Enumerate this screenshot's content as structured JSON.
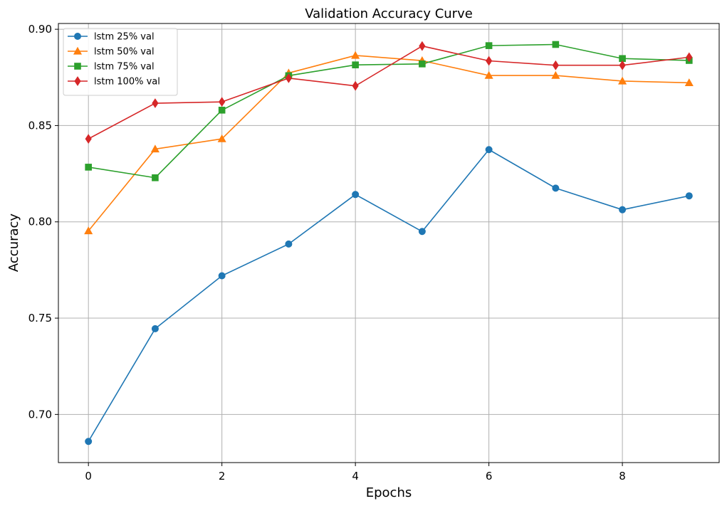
{
  "chart_data": {
    "type": "line",
    "title": "Validation Accuracy Curve",
    "xlabel": "Epochs",
    "ylabel": "Accuracy",
    "x": [
      0,
      1,
      2,
      3,
      4,
      5,
      6,
      7,
      8,
      9
    ],
    "xlim": [
      -0.45,
      9.45
    ],
    "ylim": [
      0.675,
      0.903
    ],
    "xticks": [
      0,
      2,
      4,
      6,
      8
    ],
    "yticks": [
      0.7,
      0.75,
      0.8,
      0.85,
      0.9
    ],
    "ytick_labels": [
      "0.70",
      "0.75",
      "0.80",
      "0.85",
      "0.90"
    ],
    "grid": true,
    "legend_position": "top-left",
    "series": [
      {
        "name": "lstm 25% val",
        "color": "#1f77b4",
        "marker": "circle",
        "values": [
          0.686,
          0.7445,
          0.772,
          0.7885,
          0.8142,
          0.795,
          0.8375,
          0.8175,
          0.8063,
          0.8135
        ]
      },
      {
        "name": "lstm 50% val",
        "color": "#ff7f0e",
        "marker": "triangle",
        "values": [
          0.7953,
          0.8378,
          0.8431,
          0.8773,
          0.8864,
          0.8837,
          0.876,
          0.876,
          0.8731,
          0.8722
        ]
      },
      {
        "name": "lstm 75% val",
        "color": "#2ca02c",
        "marker": "square",
        "values": [
          0.8284,
          0.8229,
          0.858,
          0.8759,
          0.8815,
          0.882,
          0.8915,
          0.8921,
          0.8848,
          0.8838
        ]
      },
      {
        "name": "lstm 100% val",
        "color": "#d62728",
        "marker": "diamond",
        "values": [
          0.8431,
          0.8616,
          0.8623,
          0.8746,
          0.8706,
          0.8913,
          0.8836,
          0.8813,
          0.8813,
          0.8855
        ]
      }
    ]
  }
}
